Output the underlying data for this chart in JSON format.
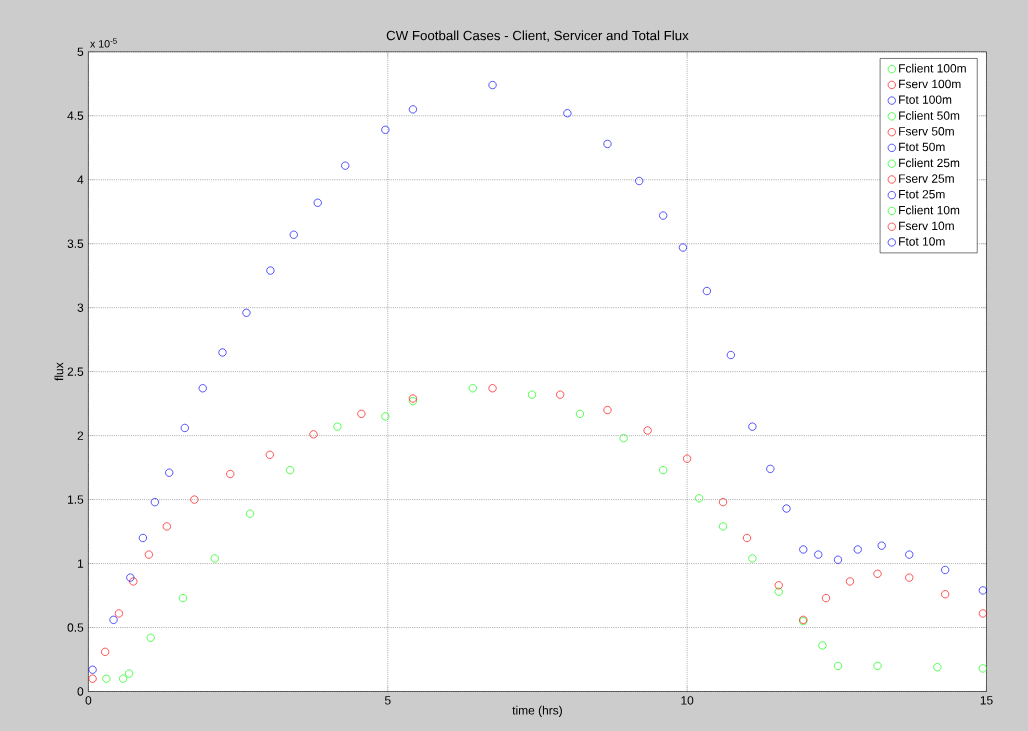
{
  "chart_data": {
    "type": "scatter",
    "title": "CW Football Cases - Client, Servicer and Total Flux",
    "xlabel": "time (hrs)",
    "ylabel": "flux",
    "annotations": [
      "x 10$^{-5}$"
    ],
    "xlim": [
      0,
      15
    ],
    "ylim": [
      0,
      5
    ],
    "xticks": [
      0,
      5,
      10,
      15
    ],
    "yticks": [
      0,
      0.5,
      1,
      1.5,
      2,
      2.5,
      3,
      3.5,
      4,
      4.5,
      5
    ],
    "grid": true,
    "legend": "top right",
    "marker": "circle",
    "series": [
      {
        "name": "Fclient 100m",
        "color": "#00ff00"
      },
      {
        "name": "Fserv 100m",
        "color": "#ff0000"
      },
      {
        "name": "Ftot 100m",
        "color": "#0000ff"
      },
      {
        "name": "Fclient 50m",
        "color": "#00ff00"
      },
      {
        "name": "Fserv 50m",
        "color": "#ff0000"
      },
      {
        "name": "Ftot 50m",
        "color": "#0000ff"
      },
      {
        "name": "Fclient 25m",
        "color": "#00ff00"
      },
      {
        "name": "Fserv 25m",
        "color": "#ff0000"
      },
      {
        "name": "Ftot 25m",
        "color": "#0000ff"
      },
      {
        "name": "Fclient 10m",
        "color": "#00ff00",
        "x": [
          0.3,
          0.58,
          0.68,
          1.04,
          1.58,
          2.11,
          2.7,
          3.37,
          4.16,
          4.96,
          5.42,
          6.42,
          7.41,
          8.21,
          8.94,
          9.6,
          10.2,
          10.6,
          11.09,
          11.53,
          11.94,
          12.26,
          12.52,
          13.18,
          14.18,
          14.94
        ],
        "values": [
          0.1,
          0.1,
          0.14,
          0.42,
          0.73,
          1.04,
          1.39,
          1.73,
          2.07,
          2.15,
          2.27,
          2.37,
          2.32,
          2.17,
          1.98,
          1.73,
          1.51,
          1.29,
          1.04,
          0.78,
          0.55,
          0.36,
          0.2,
          0.2,
          0.19,
          0.18
        ]
      },
      {
        "name": "Fserv 10m",
        "color": "#ff0000",
        "x": [
          0.07,
          0.28,
          0.51,
          0.75,
          1.01,
          1.31,
          1.77,
          2.37,
          3.03,
          3.76,
          4.56,
          5.42,
          6.75,
          7.88,
          8.67,
          9.34,
          10.0,
          10.6,
          11.0,
          11.53,
          11.94,
          12.32,
          12.72,
          13.18,
          13.71,
          14.31,
          14.94
        ],
        "values": [
          0.1,
          0.31,
          0.61,
          0.86,
          1.07,
          1.29,
          1.5,
          1.7,
          1.85,
          2.01,
          2.17,
          2.29,
          2.37,
          2.32,
          2.2,
          2.04,
          1.82,
          1.48,
          1.2,
          0.83,
          0.56,
          0.73,
          0.86,
          0.92,
          0.89,
          0.76,
          0.61
        ]
      },
      {
        "name": "Ftot 10m",
        "color": "#0000ff",
        "x": [
          0.07,
          0.42,
          0.7,
          0.91,
          1.11,
          1.35,
          1.61,
          1.91,
          2.24,
          2.64,
          3.04,
          3.43,
          3.83,
          4.29,
          4.96,
          5.42,
          6.75,
          8.0,
          8.67,
          9.2,
          9.6,
          9.93,
          10.33,
          10.73,
          11.09,
          11.39,
          11.66,
          11.94,
          12.19,
          12.52,
          12.85,
          13.25,
          13.71,
          14.31,
          14.94
        ],
        "values": [
          0.17,
          0.56,
          0.89,
          1.2,
          1.48,
          1.71,
          2.06,
          2.37,
          2.65,
          2.96,
          3.29,
          3.57,
          3.82,
          4.11,
          4.39,
          4.55,
          4.74,
          4.52,
          4.28,
          3.99,
          3.72,
          3.47,
          3.13,
          2.63,
          2.07,
          1.74,
          1.43,
          1.11,
          1.07,
          1.03,
          1.11,
          1.14,
          1.07,
          0.95,
          0.79
        ]
      }
    ]
  }
}
